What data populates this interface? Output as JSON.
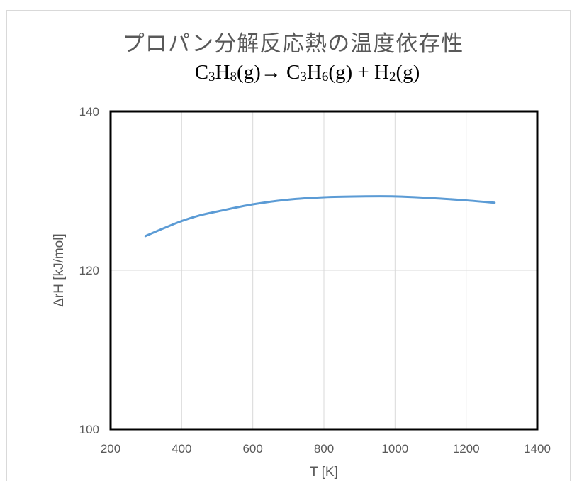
{
  "chart_data": {
    "type": "line",
    "title": "プロパン分解反応熱の温度依存性",
    "subtitle": {
      "parts": [
        {
          "t": "C"
        },
        {
          "t": "3",
          "sub": true
        },
        {
          "t": "H"
        },
        {
          "t": "8",
          "sub": true
        },
        {
          "t": "(g)→  C"
        },
        {
          "t": "3",
          "sub": true
        },
        {
          "t": "H"
        },
        {
          "t": "6",
          "sub": true
        },
        {
          "t": "(g) + H"
        },
        {
          "t": "2",
          "sub": true
        },
        {
          "t": "(g)"
        }
      ]
    },
    "xlabel": "T [K]",
    "ylabel": "ΔrH [kJ/mol]",
    "xlim": [
      200,
      1400
    ],
    "ylim": [
      100,
      140
    ],
    "xticks": [
      200,
      400,
      600,
      800,
      1000,
      1200,
      1400
    ],
    "yticks": [
      100,
      120,
      140
    ],
    "grid": true,
    "series": [
      {
        "color": "#5b9bd5",
        "x": [
          298,
          350,
          400,
          450,
          500,
          600,
          700,
          800,
          900,
          1000,
          1100,
          1200,
          1280
        ],
        "y": [
          124.3,
          125.3,
          126.2,
          126.9,
          127.4,
          128.3,
          128.9,
          129.2,
          129.3,
          129.3,
          129.1,
          128.8,
          128.5
        ]
      }
    ]
  }
}
